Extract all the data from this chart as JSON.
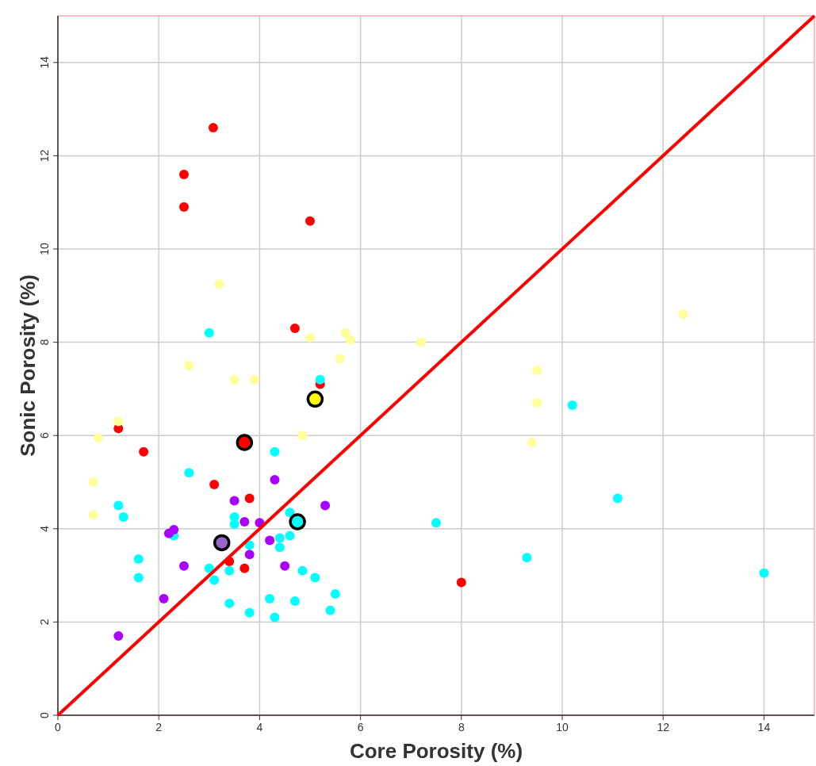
{
  "chart_data": {
    "type": "scatter",
    "xlabel": "Core Porosity (%)",
    "ylabel": "Sonic Porosity (%)",
    "xlim": [
      0,
      15
    ],
    "ylim": [
      0,
      15
    ],
    "xticks": [
      0,
      2,
      4,
      6,
      8,
      10,
      12,
      14
    ],
    "yticks": [
      0,
      2,
      4,
      6,
      8,
      10,
      12,
      14
    ],
    "grid": true,
    "marker": "circle",
    "series": [
      {
        "color": "#ff0000",
        "x": [
          3.08,
          2.5,
          2.5,
          5.0,
          4.7,
          5.2,
          1.7,
          1.2,
          3.1,
          3.8,
          3.4,
          3.7,
          8.0
        ],
        "values": [
          12.6,
          11.6,
          10.9,
          10.6,
          8.3,
          7.1,
          5.65,
          6.15,
          4.95,
          4.65,
          3.3,
          3.15,
          2.85
        ]
      },
      {
        "color": "#ffff99",
        "x": [
          3.2,
          2.6,
          3.5,
          3.9,
          5.0,
          5.7,
          5.8,
          5.6,
          7.2,
          4.85,
          0.8,
          1.2,
          0.7,
          0.7,
          9.4,
          9.5,
          9.5,
          12.4
        ],
        "values": [
          9.25,
          7.5,
          7.2,
          7.2,
          8.1,
          8.2,
          8.05,
          7.65,
          8.0,
          6.0,
          5.95,
          6.3,
          5.0,
          4.3,
          5.85,
          7.4,
          6.7,
          8.6
        ]
      },
      {
        "color": "#00ffff",
        "x": [
          3.0,
          5.2,
          4.3,
          2.6,
          1.2,
          1.3,
          1.6,
          1.6,
          2.3,
          3.5,
          3.5,
          3.8,
          3.0,
          3.1,
          3.4,
          3.4,
          3.8,
          4.2,
          4.3,
          4.4,
          4.4,
          4.6,
          4.6,
          4.85,
          5.1,
          4.7,
          5.4,
          5.5,
          7.5,
          10.2,
          11.1,
          9.3,
          14.0
        ],
        "values": [
          8.2,
          7.2,
          5.65,
          5.2,
          4.5,
          4.25,
          3.35,
          2.95,
          3.85,
          4.25,
          4.1,
          3.65,
          3.15,
          2.9,
          3.1,
          2.4,
          2.2,
          2.5,
          2.1,
          3.8,
          3.6,
          4.35,
          3.85,
          3.1,
          2.95,
          2.45,
          2.25,
          2.6,
          4.13,
          6.65,
          4.65,
          3.38,
          3.05
        ]
      },
      {
        "color": "#aa00ff",
        "x": [
          4.3,
          3.5,
          5.3,
          3.7,
          4.0,
          2.3,
          2.2,
          4.2,
          3.8,
          2.5,
          4.5,
          2.1,
          1.2
        ],
        "values": [
          5.05,
          4.6,
          4.5,
          4.15,
          4.13,
          3.98,
          3.9,
          3.75,
          3.45,
          3.2,
          3.2,
          2.5,
          1.7
        ]
      },
      {
        "colors": [
          "#ff0000",
          "#ffff00",
          "#00ffff",
          "#9966cc"
        ],
        "x": [
          3.7,
          5.1,
          4.75,
          3.25
        ],
        "values": [
          5.85,
          6.78,
          4.15,
          3.7
        ]
      },
      {
        "type": "line",
        "color": "#ff0000",
        "x": [
          0,
          15
        ],
        "values": [
          0,
          15
        ],
        "marker": "none"
      }
    ]
  }
}
